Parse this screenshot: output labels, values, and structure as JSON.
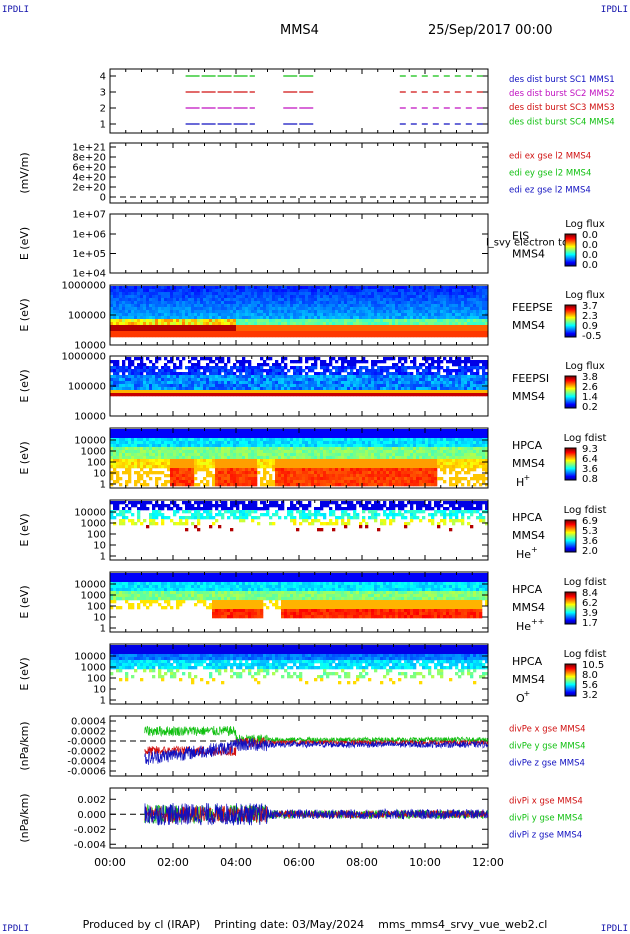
{
  "header": {
    "corner_tl": "IPDLI",
    "corner_tr": "IPDLI",
    "corner_bl": "IPDLI",
    "corner_br": "IPDLI",
    "spacecraft": "MMS4",
    "date": "25/Sep/2017 00:00"
  },
  "footer": {
    "produced_by": "Produced by cl (IRAP)",
    "printing_date": "Printing date: 03/May/2024",
    "file": "mms_mms4_srvy_vue_web2.cl"
  },
  "x_axis": {
    "ticks": [
      "00:00",
      "02:00",
      "04:00",
      "06:00",
      "08:00",
      "10:00",
      "12:00"
    ],
    "range_hours": [
      0,
      12
    ]
  },
  "colors": {
    "mms1": "#1010c0",
    "mms2": "#c010c0",
    "mms3": "#d01010",
    "mms4": "#10c010",
    "x": "#d01010",
    "y": "#10c010",
    "z": "#1010c0"
  },
  "chart_data": [
    {
      "type": "line",
      "id": "burst",
      "yticks": [
        "1",
        "2",
        "3",
        "4"
      ],
      "legend": [
        {
          "label": "des dist burst SC1 MMS1",
          "color": "#1010c0"
        },
        {
          "label": "des dist burst SC2 MMS2",
          "color": "#c010c0"
        },
        {
          "label": "des dist burst SC3 MMS3",
          "color": "#d01010"
        },
        {
          "label": "des dist burst SC4 MMS4",
          "color": "#10c010"
        }
      ],
      "intervals_hours": [
        [
          2.4,
          4.6
        ],
        [
          5.5,
          6.5
        ],
        [
          9.2,
          12.0
        ]
      ],
      "ylim": [
        0.5,
        4.5
      ]
    },
    {
      "type": "line",
      "id": "edi",
      "ylabel": "(mV/m)",
      "yticks": [
        "0",
        "2e+20",
        "4e+20",
        "6e+20",
        "8e+20",
        "1e+21"
      ],
      "legend": [
        {
          "label": "edi ex gse l2 MMS4",
          "color": "#d01010"
        },
        {
          "label": "edi ey gse l2 MMS4",
          "color": "#10c010"
        },
        {
          "label": "edi ez gse l2 MMS4",
          "color": "#1010c0"
        }
      ]
    },
    {
      "type": "heatmap",
      "id": "eis",
      "ylabel": "E (eV)",
      "yticks": [
        "1e+04",
        "1e+05",
        "1e+06",
        "1e+07"
      ],
      "right_label": [
        "EIS",
        "MMS4"
      ],
      "overlay_text": "l_svy electron to",
      "colorbar_title": "Log flux",
      "colorbar_ticks": [
        "0.0",
        "0.0",
        "0.0",
        "0.0"
      ]
    },
    {
      "type": "heatmap",
      "id": "feepse",
      "ylabel": "E (eV)",
      "yticks": [
        "10000",
        "100000",
        "1000000"
      ],
      "right_label": [
        "FEEPSE",
        "MMS4"
      ],
      "colorbar_title": "Log flux",
      "colorbar_ticks": [
        "3.7",
        "2.3",
        "0.9",
        "-0.5"
      ]
    },
    {
      "type": "heatmap",
      "id": "feepsi",
      "ylabel": "E (eV)",
      "yticks": [
        "10000",
        "100000",
        "1000000"
      ],
      "right_label": [
        "FEEPSI",
        "MMS4"
      ],
      "colorbar_title": "Log flux",
      "colorbar_ticks": [
        "3.8",
        "2.6",
        "1.4",
        "0.2"
      ]
    },
    {
      "type": "heatmap",
      "id": "hpca_h",
      "ylabel": "E (eV)",
      "yticks": [
        "1",
        "10",
        "100",
        "1000",
        "10000"
      ],
      "right_label": [
        "HPCA",
        "MMS4"
      ],
      "species": "H",
      "species_charge": "+",
      "colorbar_title": "Log fdist",
      "colorbar_ticks": [
        "9.3",
        "6.4",
        "3.6",
        "0.8"
      ]
    },
    {
      "type": "heatmap",
      "id": "hpca_he",
      "ylabel": "E (eV)",
      "yticks": [
        "1",
        "10",
        "100",
        "1000",
        "10000"
      ],
      "right_label": [
        "HPCA",
        "MMS4"
      ],
      "species": "He",
      "species_charge": "+",
      "colorbar_title": "Log fdist",
      "colorbar_ticks": [
        "6.9",
        "5.3",
        "3.6",
        "2.0"
      ]
    },
    {
      "type": "heatmap",
      "id": "hpca_hepp",
      "ylabel": "E (eV)",
      "yticks": [
        "1",
        "10",
        "100",
        "1000",
        "10000"
      ],
      "right_label": [
        "HPCA",
        "MMS4"
      ],
      "species": "He",
      "species_charge": "++",
      "colorbar_title": "Log fdist",
      "colorbar_ticks": [
        "8.4",
        "6.2",
        "3.9",
        "1.7"
      ]
    },
    {
      "type": "heatmap",
      "id": "hpca_o",
      "ylabel": "E (eV)",
      "yticks": [
        "1",
        "10",
        "100",
        "1000",
        "10000"
      ],
      "right_label": [
        "HPCA",
        "MMS4"
      ],
      "species": "O",
      "species_charge": "+",
      "colorbar_title": "Log fdist",
      "colorbar_ticks": [
        "10.5",
        "8.0",
        "5.6",
        "3.2"
      ]
    },
    {
      "type": "line",
      "id": "divpe",
      "ylabel": "(nPa/km)",
      "yticks": [
        "-0.0006",
        "-0.0004",
        "-0.0002",
        "-0.0000",
        "0.0002",
        "0.0004"
      ],
      "ylim": [
        -0.0007,
        0.0005
      ],
      "legend": [
        {
          "label": "divPe x gse MMS4",
          "color": "#d01010"
        },
        {
          "label": "divPe y gse MMS4",
          "color": "#10c010"
        },
        {
          "label": "divPe z gse MMS4",
          "color": "#1010c0"
        }
      ]
    },
    {
      "type": "line",
      "id": "divpi",
      "ylabel": "(nPa/km)",
      "yticks": [
        "-0.004",
        "-0.002",
        "0.000",
        "0.002"
      ],
      "ylim": [
        -0.0045,
        0.0035
      ],
      "legend": [
        {
          "label": "divPi x gse MMS4",
          "color": "#d01010"
        },
        {
          "label": "divPi y gse MMS4",
          "color": "#10c010"
        },
        {
          "label": "divPi z gse MMS4",
          "color": "#1010c0"
        }
      ]
    }
  ]
}
